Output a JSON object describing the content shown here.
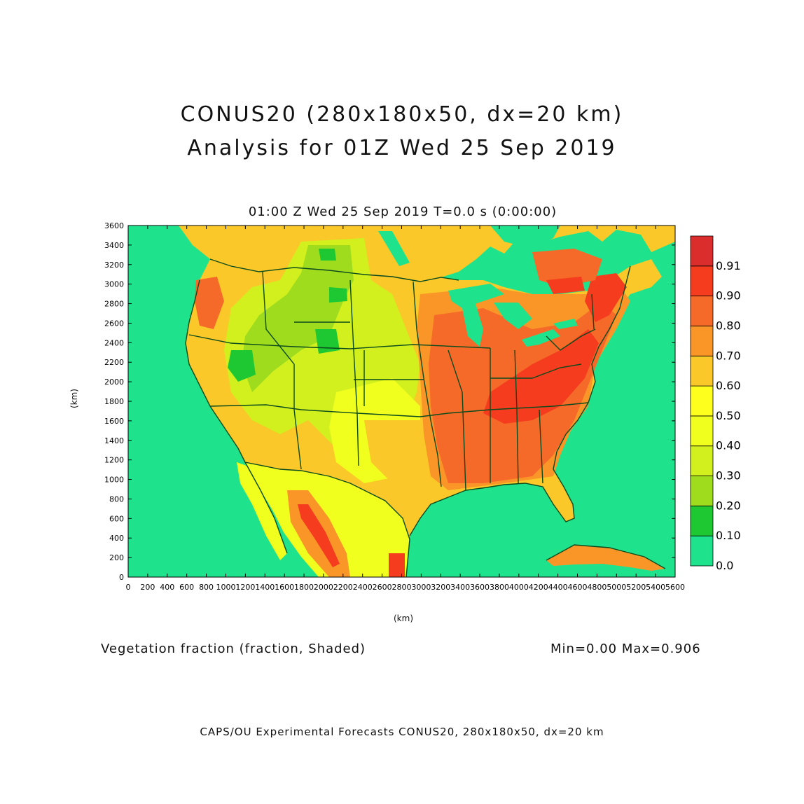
{
  "title": {
    "line1": "CONUS20 (280x180x50, dx=20 km)",
    "line2": "Analysis for 01Z Wed 25 Sep 2019"
  },
  "subtitle": "01:00 Z Wed 25 Sep 2019    T=0.0 s (0:00:00)",
  "variable_label": "Vegetation fraction (fraction, Shaded)",
  "minmax": "Min=0.00  Max=0.906",
  "footer": "CAPS/OU Experimental Forecasts  CONUS20, 280x180x50, dx=20 km",
  "map": {
    "x_axis_unit": "(km)",
    "y_axis_unit": "(km)",
    "x_ticks": [
      "0",
      "200",
      "400",
      "600",
      "800",
      "1000",
      "1200",
      "1400",
      "1600",
      "1800",
      "2000",
      "2200",
      "2400",
      "2600",
      "2800",
      "3000",
      "3200",
      "3400",
      "3600",
      "3800",
      "4000",
      "4200",
      "4400",
      "4600",
      "4800",
      "5000",
      "5200",
      "5400",
      "5600"
    ],
    "y_ticks": [
      "0",
      "200",
      "400",
      "600",
      "800",
      "1000",
      "1200",
      "1400",
      "1600",
      "1800",
      "2000",
      "2200",
      "2400",
      "2600",
      "2800",
      "3000",
      "3200",
      "3400",
      "3600"
    ],
    "xlim": [
      0,
      5600
    ],
    "ylim": [
      0,
      3600
    ]
  },
  "colorbar": {
    "levels": [
      "0.0",
      "0.10",
      "0.20",
      "0.30",
      "0.40",
      "0.50",
      "0.60",
      "0.70",
      "0.80",
      "0.90",
      "0.91"
    ],
    "colors": [
      "#1ee38c",
      "#1ec832",
      "#a0dc1e",
      "#d2f01e",
      "#f0ff1e",
      "#ffff1e",
      "#fac828",
      "#fa9628",
      "#f56a28",
      "#f53c1e",
      "#dc2d2d"
    ]
  },
  "colors": {
    "ocean": "#1ee38c",
    "boundary": "#0b4a1c"
  }
}
